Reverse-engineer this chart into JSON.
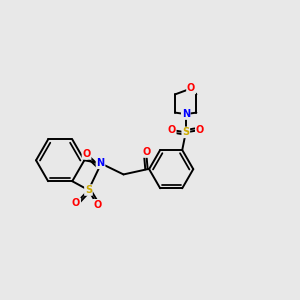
{
  "background_color": "#e8e8e8",
  "bond_color": "#000000",
  "atom_colors": {
    "O": "#ff0000",
    "N": "#0000ff",
    "S": "#ccaa00",
    "C": "#000000"
  },
  "figsize": [
    3.0,
    3.0
  ],
  "dpi": 100
}
